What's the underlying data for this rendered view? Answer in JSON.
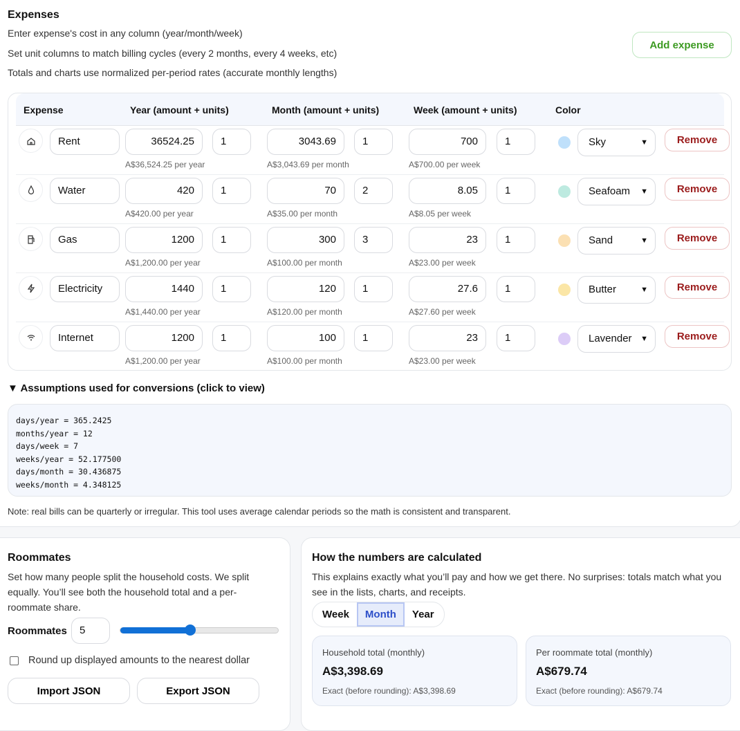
{
  "expenses_section": {
    "title": "Expenses",
    "lines": [
      "Enter expense's cost in any column (year/month/week)",
      "Set unit columns to match billing cycles (every 2 months, every 4 weeks, etc)",
      "Totals and charts use normalized per-period rates (accurate monthly lengths)"
    ],
    "add_label": "Add expense",
    "headers": [
      "Expense",
      "Year (amount + units)",
      "Month (amount + units)",
      "Week (amount + units)",
      "Color"
    ],
    "remove_label": "Remove",
    "rows": [
      {
        "icon": "home-icon",
        "name": "Rent",
        "year": "36524.25",
        "year_units": "1",
        "year_hint": "A$36,524.25 per year",
        "month": "3043.69",
        "month_units": "1",
        "month_hint": "A$3,043.69 per month",
        "week": "700",
        "week_units": "1",
        "week_hint": "A$700.00 per week",
        "color_name": "Sky",
        "color": "#bfe0fb"
      },
      {
        "icon": "droplet-icon",
        "name": "Water",
        "year": "420",
        "year_units": "1",
        "year_hint": "A$420.00 per year",
        "month": "70",
        "month_units": "2",
        "month_hint": "A$35.00 per month",
        "week": "8.05",
        "week_units": "1",
        "week_hint": "A$8.05 per week",
        "color_name": "Seafoam",
        "color": "#bdeae0"
      },
      {
        "icon": "gas-pump-icon",
        "name": "Gas",
        "year": "1200",
        "year_units": "1",
        "year_hint": "A$1,200.00 per year",
        "month": "300",
        "month_units": "3",
        "month_hint": "A$100.00 per month",
        "week": "23",
        "week_units": "1",
        "week_hint": "A$23.00 per week",
        "color_name": "Sand",
        "color": "#fbe0b3"
      },
      {
        "icon": "lightning-icon",
        "name": "Electricity",
        "year": "1440",
        "year_units": "1",
        "year_hint": "A$1,440.00 per year",
        "month": "120",
        "month_units": "1",
        "month_hint": "A$120.00 per month",
        "week": "27.6",
        "week_units": "1",
        "week_hint": "A$27.60 per week",
        "color_name": "Butter",
        "color": "#fbe6a6"
      },
      {
        "icon": "wifi-icon",
        "name": "Internet",
        "year": "1200",
        "year_units": "1",
        "year_hint": "A$1,200.00 per year",
        "month": "100",
        "month_units": "1",
        "month_hint": "A$100.00 per month",
        "week": "23",
        "week_units": "1",
        "week_hint": "A$23.00 per week",
        "color_name": "Lavender",
        "color": "#dcccf7"
      }
    ],
    "assumptions_summary": "▼ Assumptions used for conversions (click to view)",
    "assumptions": "days/year = 365.2425\nmonths/year = 12\ndays/week = 7\nweeks/year = 52.177500\ndays/month = 30.436875\nweeks/month = 4.348125",
    "note": "Note: real bills can be quarterly or irregular. This tool uses average calendar periods so the math is consistent and transparent."
  },
  "roommates": {
    "title": "Roommates",
    "desc": "Set how many people split the household costs. We split equally. You’ll see both the household total and a per-roommate share.",
    "label": "Roommates",
    "count": "5",
    "slider_min": 1,
    "slider_max": 10,
    "slider_value": 5,
    "round_label": "Round up displayed amounts to the nearest dollar",
    "round_checked": false,
    "import_label": "Import JSON",
    "export_label": "Export JSON"
  },
  "calc": {
    "title": "How the numbers are calculated",
    "desc": "This explains exactly what you’ll pay and how we get there. No surprises: totals match what you see in the lists, charts, and receipts.",
    "periods": [
      "Week",
      "Month",
      "Year"
    ],
    "active_period": "Month",
    "household": {
      "label": "Household total (monthly)",
      "value": "A$3,398.69",
      "exact": "Exact (before rounding): A$3,398.69"
    },
    "per_roommate": {
      "label": "Per roommate total (monthly)",
      "value": "A$679.74",
      "exact": "Exact (before rounding): A$679.74"
    }
  },
  "colors": {
    "accent": "#2d4fc9",
    "slider": "#1170d6",
    "remove": "#9b1c1c",
    "add": "#3c9a22"
  }
}
